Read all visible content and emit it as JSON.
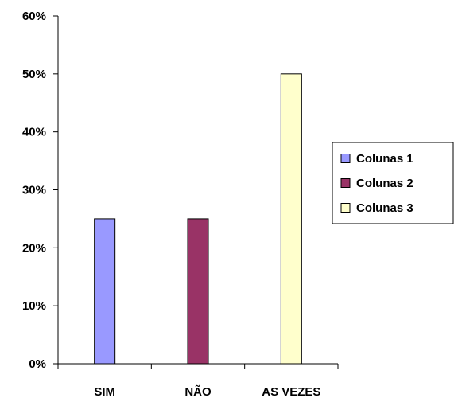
{
  "chart_data": {
    "type": "bar",
    "categories": [
      "SIM",
      "NÃO",
      "AS VEZES"
    ],
    "series": [
      {
        "name": "Colunas 1",
        "category": "SIM",
        "value": 25,
        "color": "#9999ff"
      },
      {
        "name": "Colunas 2",
        "category": "NÃO",
        "value": 25,
        "color": "#993366"
      },
      {
        "name": "Colunas 3",
        "category": "AS VEZES",
        "value": 50,
        "color": "#ffffcc"
      }
    ],
    "y_ticks": [
      "0%",
      "10%",
      "20%",
      "30%",
      "40%",
      "50%",
      "60%"
    ],
    "ylim": [
      0,
      60
    ],
    "y_unit": "%",
    "grid": false,
    "legend_position": "right"
  }
}
